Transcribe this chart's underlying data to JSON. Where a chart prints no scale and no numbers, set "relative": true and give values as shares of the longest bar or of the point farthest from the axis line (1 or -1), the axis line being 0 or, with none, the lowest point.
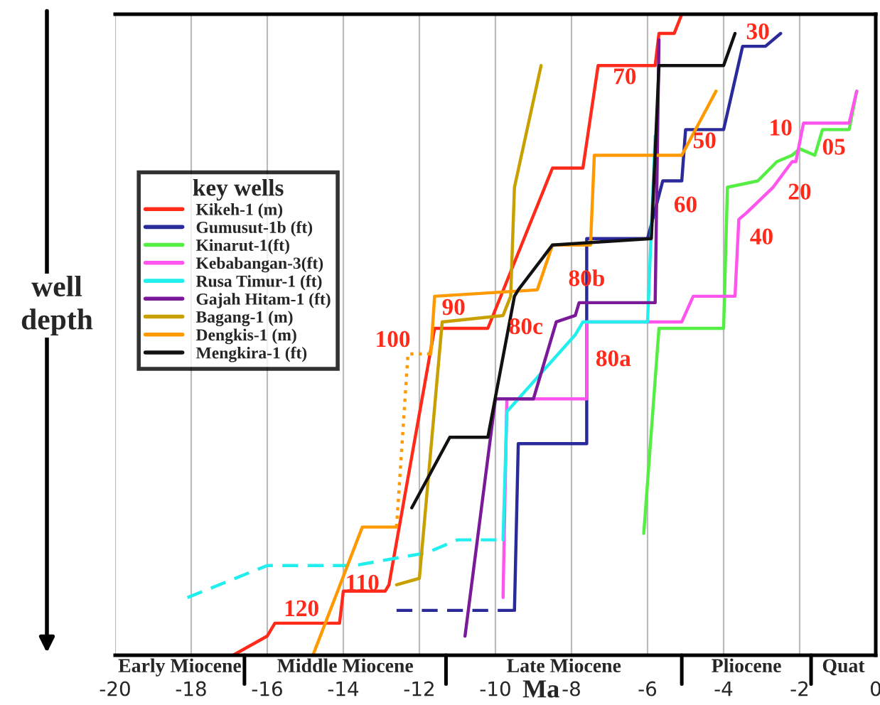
{
  "chart_data": {
    "type": "line",
    "relative": true,
    "xlabel": "Ma",
    "ylabel": "well\ndepth",
    "legend_title": "key wells",
    "legend": "left",
    "grid": "x",
    "xlim": [
      -20,
      0
    ],
    "xticks": [
      -20,
      -18,
      -16,
      -14,
      -12,
      -10,
      -8,
      -6,
      -4,
      -2,
      0
    ],
    "series": [
      {
        "name": "Kikeh-1 (m)",
        "color": "#ff2a1a",
        "x": [
          -16.9,
          -16.0,
          -15.8,
          -14.1,
          -14.0,
          -12.9,
          -12.8,
          -11.6,
          -10.2,
          -8.5,
          -7.7,
          -7.3,
          -5.8,
          -5.7,
          -5.3,
          -5.1
        ],
        "values": [
          0,
          0.03,
          0.05,
          0.05,
          0.1,
          0.1,
          0.11,
          0.51,
          0.51,
          0.76,
          0.76,
          0.92,
          0.92,
          0.97,
          0.97,
          1.0
        ]
      },
      {
        "name": "Gumusut-1b (ft)",
        "color": "#2a2a9a",
        "x": [
          -9.5,
          -9.4,
          -7.6,
          -7.6,
          -6.0,
          -5.6,
          -5.1,
          -5.0,
          -4.0,
          -3.5,
          -2.9,
          -2.5
        ],
        "values": [
          0.07,
          0.33,
          0.33,
          0.65,
          0.65,
          0.74,
          0.74,
          0.82,
          0.82,
          0.95,
          0.95,
          0.97
        ]
      },
      {
        "color": "#2a2a9a",
        "line_style": "dashed",
        "x": [
          -12.6,
          -9.5
        ],
        "values": [
          0.07,
          0.07
        ]
      },
      {
        "name": "Kinarut-1(ft)",
        "color": "#55ee44",
        "x": [
          -6.1,
          -5.7,
          -4.0,
          -3.9,
          -3.1,
          -2.6,
          -2.2,
          -2.0,
          -1.6,
          -1.4,
          -0.7,
          -0.5
        ],
        "values": [
          0.19,
          0.51,
          0.51,
          0.73,
          0.74,
          0.77,
          0.78,
          0.79,
          0.78,
          0.82,
          0.82,
          0.88
        ]
      },
      {
        "name": "Kebabangan-3(ft)",
        "color": "#ff55ee",
        "x": [
          -9.8,
          -9.7,
          -7.6,
          -7.6,
          -5.1,
          -4.8,
          -3.7,
          -3.6,
          -3.4,
          -2.7,
          -2.2,
          -2.1,
          -1.9,
          -0.7,
          -0.5
        ],
        "values": [
          0.09,
          0.4,
          0.4,
          0.52,
          0.52,
          0.56,
          0.56,
          0.68,
          0.69,
          0.73,
          0.77,
          0.77,
          0.83,
          0.83,
          0.88
        ]
      },
      {
        "name": "Rusa Timur-1 (ft)",
        "color": "#22eeee",
        "x": [
          -9.8,
          -9.7,
          -9.4,
          -7.9,
          -7.7,
          -6.0,
          -5.8
        ],
        "values": [
          0.18,
          0.38,
          0.4,
          0.5,
          0.52,
          0.52,
          0.81
        ]
      },
      {
        "color": "#22eeee",
        "line_style": "dashed",
        "x": [
          -18.1,
          -16.0,
          -13.7,
          -11.8,
          -11.0,
          -9.8
        ],
        "values": [
          0.09,
          0.14,
          0.14,
          0.16,
          0.18,
          0.18
        ]
      },
      {
        "name": "Gajah Hitam-1 (ft)",
        "color": "#7a1a9a",
        "x": [
          -10.8,
          -10.0,
          -9.0,
          -8.4,
          -7.9,
          -7.8,
          -5.8,
          -5.7
        ],
        "values": [
          0.03,
          0.4,
          0.4,
          0.52,
          0.53,
          0.55,
          0.55,
          0.96
        ]
      },
      {
        "name": "Bagang-1 (m)",
        "color": "#c8a000",
        "x": [
          -12.6,
          -12.0,
          -11.4,
          -9.8,
          -9.6,
          -9.5,
          -8.8
        ],
        "values": [
          0.11,
          0.12,
          0.52,
          0.53,
          0.56,
          0.73,
          0.92
        ]
      },
      {
        "name": "Dengkis-1 (m)",
        "color": "#ff9900",
        "x": [
          -14.8,
          -13.5,
          -12.6
        ],
        "values": [
          0,
          0.2,
          0.2
        ]
      },
      {
        "color": "#ff9900",
        "line_style": "dotted",
        "x": [
          -12.6,
          -12.3,
          -11.7
        ],
        "values": [
          0.2,
          0.47,
          0.47
        ]
      },
      {
        "color": "#ff9900",
        "x": [
          -11.7,
          -11.6,
          -8.9,
          -8.5,
          -7.5,
          -7.4,
          -5.1,
          -4.2
        ],
        "values": [
          0.47,
          0.56,
          0.57,
          0.64,
          0.64,
          0.78,
          0.78,
          0.88
        ]
      },
      {
        "name": "Mengkira-1 (ft)",
        "color": "#111111",
        "x": [
          -12.2,
          -11.2,
          -10.2,
          -9.5,
          -9.4,
          -8.5,
          -5.9,
          -5.7,
          -4.0,
          -3.7
        ],
        "values": [
          0.23,
          0.34,
          0.34,
          0.56,
          0.57,
          0.64,
          0.65,
          0.92,
          0.92,
          0.97
        ]
      }
    ],
    "annotations": [
      "120",
      "110",
      "100",
      "90",
      "80c",
      "80b",
      "80a",
      "70",
      "60",
      "50",
      "40",
      "30",
      "20",
      "10",
      "05",
      "Early Miocene",
      "Middle Miocene",
      "Late Miocene",
      "Pliocene",
      "Quat"
    ]
  }
}
